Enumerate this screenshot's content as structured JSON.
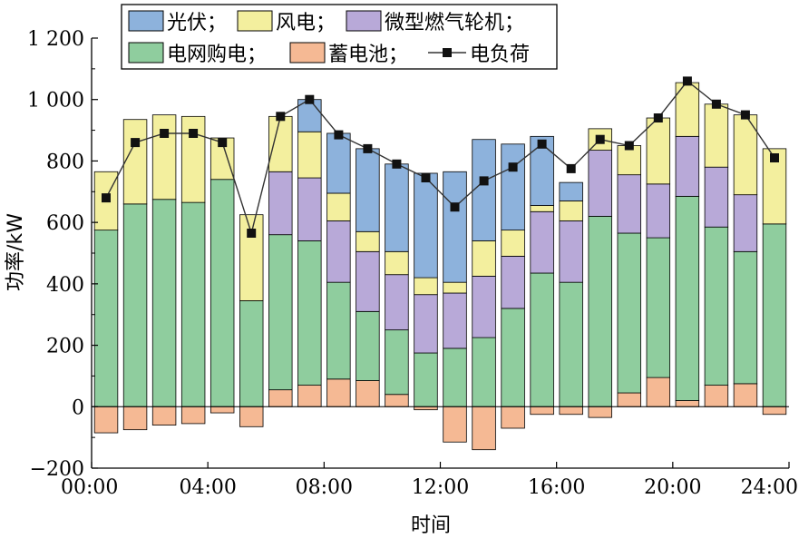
{
  "chart_data": {
    "type": "bar",
    "stacked": true,
    "xlabel": "时间",
    "ylabel": "功率/kW",
    "ylim": [
      -200,
      1200
    ],
    "yticks": [
      -200,
      0,
      200,
      400,
      600,
      800,
      1000,
      1200
    ],
    "ytick_labels": [
      "−200",
      "0",
      "200",
      "400",
      "600",
      "800",
      "1 000",
      "1 200"
    ],
    "xlim": [
      0,
      24
    ],
    "xticks": [
      0,
      4,
      8,
      12,
      16,
      20,
      24
    ],
    "xtick_labels": [
      "00:00",
      "04:00",
      "08:00",
      "12:00",
      "16:00",
      "20:00",
      "24:00"
    ],
    "hours": [
      1,
      2,
      3,
      4,
      5,
      6,
      7,
      8,
      9,
      10,
      11,
      12,
      13,
      14,
      15,
      16,
      17,
      18,
      19,
      20,
      21,
      22,
      23,
      24
    ],
    "series": [
      {
        "key": "battery_pos",
        "legend_ref": "legend.battery",
        "color": "#f5b994",
        "values": [
          0,
          0,
          0,
          0,
          0,
          0,
          55,
          70,
          90,
          85,
          40,
          0,
          0,
          0,
          0,
          0,
          0,
          0,
          45,
          95,
          20,
          70,
          75,
          0
        ]
      },
      {
        "key": "grid",
        "legend_ref": "legend.grid",
        "color": "#8fcd9e",
        "values": [
          575,
          660,
          675,
          665,
          740,
          345,
          505,
          470,
          315,
          225,
          210,
          175,
          190,
          225,
          320,
          435,
          405,
          620,
          520,
          455,
          665,
          515,
          430,
          595
        ]
      },
      {
        "key": "microturbine",
        "legend_ref": "legend.microturbine",
        "color": "#b8a9d8",
        "values": [
          0,
          0,
          0,
          0,
          0,
          0,
          205,
          205,
          200,
          195,
          180,
          190,
          180,
          200,
          170,
          200,
          200,
          215,
          190,
          175,
          195,
          195,
          185,
          0
        ]
      },
      {
        "key": "wind",
        "legend_ref": "legend.wind",
        "color": "#f3ef9e",
        "values": [
          190,
          275,
          275,
          280,
          135,
          280,
          180,
          150,
          90,
          65,
          75,
          55,
          35,
          115,
          85,
          20,
          65,
          70,
          95,
          215,
          175,
          205,
          260,
          245
        ]
      },
      {
        "key": "pv",
        "legend_ref": "legend.pv",
        "color": "#8db2dc",
        "values": [
          0,
          0,
          0,
          0,
          0,
          0,
          0,
          105,
          195,
          270,
          285,
          340,
          360,
          330,
          280,
          225,
          60,
          0,
          0,
          0,
          0,
          0,
          0,
          0
        ]
      },
      {
        "key": "battery_neg",
        "legend_ref": "legend.battery",
        "color": "#f5b994",
        "values": [
          -85,
          -75,
          -60,
          -55,
          -20,
          -65,
          0,
          0,
          0,
          0,
          0,
          -10,
          -115,
          -140,
          -70,
          -25,
          -25,
          -35,
          0,
          0,
          0,
          0,
          0,
          -25
        ]
      }
    ],
    "load": {
      "legend_ref": "legend.load",
      "color": "#333333",
      "values": [
        680,
        860,
        890,
        890,
        860,
        565,
        945,
        1000,
        885,
        840,
        790,
        745,
        650,
        735,
        780,
        855,
        775,
        870,
        850,
        940,
        1060,
        985,
        950,
        810
      ]
    }
  },
  "legend": {
    "pv": "光伏；",
    "wind": "风电；",
    "microturbine": "微型燃气轮机；",
    "grid": "电网购电；",
    "battery": "蓄电池；",
    "load": "电负荷"
  }
}
